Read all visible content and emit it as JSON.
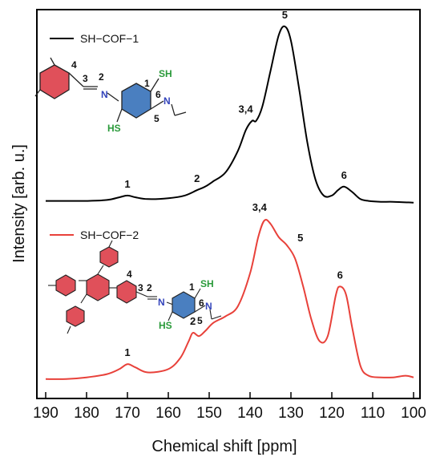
{
  "chart_data": {
    "type": "line",
    "xlabel": "Chemical shift [ppm]",
    "ylabel": "Intensity [arb. u.]",
    "xlim": [
      190,
      100
    ],
    "x_ticks": [
      "190",
      "180",
      "170",
      "160",
      "150",
      "140",
      "130",
      "120",
      "110",
      "100"
    ],
    "y_ticks_shown": false,
    "legend_placement": "top-left of each panel",
    "series": [
      {
        "name": "SH−COF−1",
        "color": "#000000",
        "offset": 1.15,
        "x": [
          190,
          185,
          180,
          175,
          172,
          170,
          168,
          165,
          160,
          156,
          153,
          151,
          149,
          146,
          143,
          141,
          139.5,
          138.5,
          137,
          135,
          133,
          131.5,
          130,
          128,
          126,
          124,
          122,
          120,
          118.5,
          117,
          115,
          113,
          111,
          108,
          105,
          100
        ],
        "y": [
          0.02,
          0.02,
          0.02,
          0.025,
          0.04,
          0.05,
          0.04,
          0.03,
          0.035,
          0.05,
          0.08,
          0.1,
          0.13,
          0.18,
          0.3,
          0.42,
          0.47,
          0.47,
          0.55,
          0.75,
          0.95,
          1.0,
          0.92,
          0.65,
          0.35,
          0.14,
          0.05,
          0.05,
          0.08,
          0.1,
          0.07,
          0.03,
          0.02,
          0.015,
          0.015,
          0.01
        ],
        "peak_labels": [
          {
            "text": "1",
            "x": 170
          },
          {
            "text": "2",
            "x": 153
          },
          {
            "text": "3,4",
            "x": 139.5
          },
          {
            "text": "5",
            "x": 131.5
          },
          {
            "text": "6",
            "x": 117
          }
        ]
      },
      {
        "name": "SH−COF−2",
        "color": "#e8413a",
        "offset": 0,
        "x": [
          190,
          185,
          180,
          175,
          172,
          170,
          168,
          165,
          160,
          157,
          155,
          154,
          152.5,
          151,
          149,
          146,
          143,
          140,
          138,
          136.5,
          135,
          133,
          131,
          129,
          127,
          125,
          123,
          121,
          119,
          118,
          116.5,
          115,
          113,
          111,
          108,
          105,
          102,
          100
        ],
        "y": [
          0.04,
          0.04,
          0.05,
          0.07,
          0.1,
          0.13,
          0.11,
          0.08,
          0.1,
          0.17,
          0.27,
          0.32,
          0.3,
          0.33,
          0.38,
          0.42,
          0.48,
          0.68,
          0.9,
          1.0,
          0.98,
          0.9,
          0.85,
          0.77,
          0.6,
          0.4,
          0.27,
          0.3,
          0.55,
          0.6,
          0.55,
          0.35,
          0.12,
          0.06,
          0.05,
          0.05,
          0.06,
          0.05
        ],
        "peak_labels": [
          {
            "text": "1",
            "x": 170
          },
          {
            "text": "2",
            "x": 154
          },
          {
            "text": "3,4",
            "x": 136.5
          },
          {
            "text": "5",
            "x": 132
          },
          {
            "text": "6",
            "x": 118
          }
        ]
      }
    ]
  },
  "molecules": {
    "cof1": {
      "numbers": [
        "1",
        "2",
        "3",
        "4",
        "5",
        "6"
      ],
      "atoms": {
        "n": "N",
        "sh": "SH",
        "hs": "HS"
      }
    },
    "cof2": {
      "numbers": [
        "1",
        "2",
        "3",
        "4",
        "5",
        "6"
      ],
      "atoms": {
        "n": "N",
        "sh": "SH",
        "hs": "HS"
      }
    }
  },
  "colors": {
    "axis": "#000000",
    "ring_red": "#e0505a",
    "ring_blue": "#4a7fc0",
    "nitrogen": "#3344bb",
    "sulfur": "#2a9a3a"
  }
}
